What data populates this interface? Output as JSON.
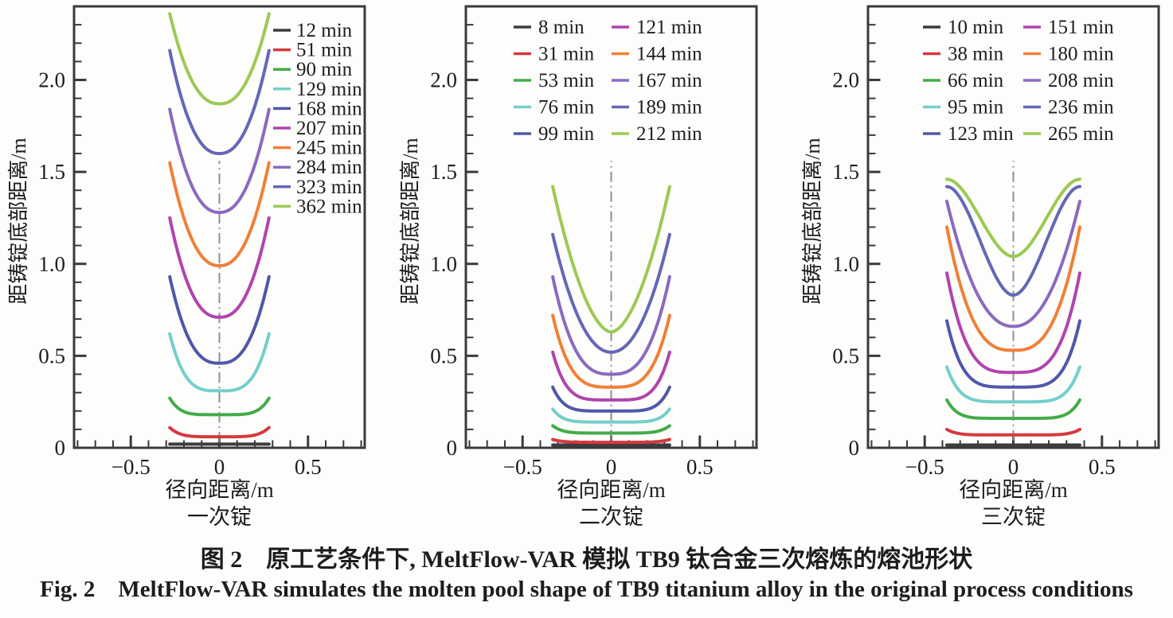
{
  "figure": {
    "caption_zh": "图 2　原工艺条件下, MeltFlow-VAR 模拟 TB9 钛合金三次熔炼的熔池形状",
    "caption_en": "Fig. 2　MeltFlow-VAR simulates the molten pool shape of TB9 titanium alloy in the original process conditions"
  },
  "chart_data": [
    {
      "type": "line",
      "subtitle": "一次锭",
      "xlabel": "径向距离/m",
      "ylabel": "距铸锭底部距离/m",
      "xlim": [
        -0.82,
        0.82
      ],
      "ylim": [
        0,
        2.4
      ],
      "grid": false,
      "legend_position": "top-right",
      "legend_columns": 1,
      "minor_tick": 0.1,
      "x_ticks": [
        {
          "v": -0.5,
          "label": "−0.5"
        },
        {
          "v": 0,
          "label": "0"
        },
        {
          "v": 0.5,
          "label": "0.5"
        }
      ],
      "y_ticks": [
        {
          "v": 0,
          "label": "0"
        },
        {
          "v": 0.5,
          "label": "0.5"
        },
        {
          "v": 1.0,
          "label": "1.0"
        },
        {
          "v": 1.5,
          "label": "1.5"
        },
        {
          "v": 2.0,
          "label": "2.0"
        }
      ],
      "centerline": {
        "x": 0,
        "y_from": 0.03,
        "y_to": 1.56
      },
      "series": [
        {
          "name": "12 min",
          "color": "#3d3d3d",
          "half_width_m": 0.28,
          "pool_bottom_m": 0.02,
          "pool_edge_m": 0.02,
          "shape": "pow",
          "shape_exponent": 2
        },
        {
          "name": "51 min",
          "color": "#d43a3f",
          "half_width_m": 0.28,
          "pool_bottom_m": 0.06,
          "pool_edge_m": 0.11,
          "shape": "pow",
          "shape_exponent": 5
        },
        {
          "name": "90 min",
          "color": "#44ab4a",
          "half_width_m": 0.28,
          "pool_bottom_m": 0.18,
          "pool_edge_m": 0.27,
          "shape": "pow",
          "shape_exponent": 5
        },
        {
          "name": "129 min",
          "color": "#74cfcb",
          "half_width_m": 0.28,
          "pool_bottom_m": 0.31,
          "pool_edge_m": 0.62,
          "shape": "pow",
          "shape_exponent": 3.5
        },
        {
          "name": "168 min",
          "color": "#4f58a8",
          "half_width_m": 0.28,
          "pool_bottom_m": 0.46,
          "pool_edge_m": 0.93,
          "shape": "pow",
          "shape_exponent": 2.6
        },
        {
          "name": "207 min",
          "color": "#b044ae",
          "half_width_m": 0.28,
          "pool_bottom_m": 0.71,
          "pool_edge_m": 1.25,
          "shape": "pow",
          "shape_exponent": 2.4
        },
        {
          "name": "245 min",
          "color": "#f08038",
          "half_width_m": 0.28,
          "pool_bottom_m": 0.99,
          "pool_edge_m": 1.55,
          "shape": "pow",
          "shape_exponent": 2.3
        },
        {
          "name": "284 min",
          "color": "#8a6ac0",
          "half_width_m": 0.28,
          "pool_bottom_m": 1.28,
          "pool_edge_m": 1.84,
          "shape": "pow",
          "shape_exponent": 2.3
        },
        {
          "name": "323 min",
          "color": "#6567b6",
          "half_width_m": 0.28,
          "pool_bottom_m": 1.6,
          "pool_edge_m": 2.16,
          "shape": "pow",
          "shape_exponent": 2.3
        },
        {
          "name": "362 min",
          "color": "#9cc954",
          "half_width_m": 0.28,
          "pool_bottom_m": 1.87,
          "pool_edge_m": 2.36,
          "shape": "pow",
          "shape_exponent": 2.3
        }
      ]
    },
    {
      "type": "line",
      "subtitle": "二次锭",
      "xlabel": "径向距离/m",
      "ylabel": "距铸锭底部距离/m",
      "xlim": [
        -0.82,
        0.82
      ],
      "ylim": [
        0,
        2.4
      ],
      "grid": false,
      "legend_position": "top-center",
      "legend_columns": 2,
      "minor_tick": 0.1,
      "x_ticks": [
        {
          "v": -0.5,
          "label": "−0.5"
        },
        {
          "v": 0,
          "label": "0"
        },
        {
          "v": 0.5,
          "label": "0.5"
        }
      ],
      "y_ticks": [
        {
          "v": 0,
          "label": "0"
        },
        {
          "v": 0.5,
          "label": "0.5"
        },
        {
          "v": 1.0,
          "label": "1.0"
        },
        {
          "v": 1.5,
          "label": "1.5"
        },
        {
          "v": 2.0,
          "label": "2.0"
        }
      ],
      "centerline": {
        "x": 0,
        "y_from": 0.04,
        "y_to": 1.56
      },
      "series": [
        {
          "name": "8 min",
          "color": "#3d3d3d",
          "half_width_m": 0.33,
          "pool_bottom_m": 0.015,
          "pool_edge_m": 0.015,
          "shape": "pow",
          "shape_exponent": 2
        },
        {
          "name": "31 min",
          "color": "#d43a3f",
          "half_width_m": 0.33,
          "pool_bottom_m": 0.03,
          "pool_edge_m": 0.045,
          "shape": "pow",
          "shape_exponent": 6
        },
        {
          "name": "53 min",
          "color": "#44ab4a",
          "half_width_m": 0.33,
          "pool_bottom_m": 0.08,
          "pool_edge_m": 0.12,
          "shape": "pow",
          "shape_exponent": 6
        },
        {
          "name": "76 min",
          "color": "#74cfcb",
          "half_width_m": 0.33,
          "pool_bottom_m": 0.14,
          "pool_edge_m": 0.21,
          "shape": "pow",
          "shape_exponent": 6
        },
        {
          "name": "99 min",
          "color": "#4f58a8",
          "half_width_m": 0.33,
          "pool_bottom_m": 0.2,
          "pool_edge_m": 0.33,
          "shape": "pow",
          "shape_exponent": 5.5
        },
        {
          "name": "121 min",
          "color": "#b044ae",
          "half_width_m": 0.33,
          "pool_bottom_m": 0.26,
          "pool_edge_m": 0.52,
          "shape": "pow",
          "shape_exponent": 4.5
        },
        {
          "name": "144 min",
          "color": "#f08038",
          "half_width_m": 0.33,
          "pool_bottom_m": 0.33,
          "pool_edge_m": 0.72,
          "shape": "pow",
          "shape_exponent": 3.5
        },
        {
          "name": "167 min",
          "color": "#8a6ac0",
          "half_width_m": 0.33,
          "pool_bottom_m": 0.4,
          "pool_edge_m": 0.93,
          "shape": "pow",
          "shape_exponent": 2.8
        },
        {
          "name": "189 min",
          "color": "#6567b6",
          "half_width_m": 0.33,
          "pool_bottom_m": 0.52,
          "pool_edge_m": 1.16,
          "shape": "pow",
          "shape_exponent": 2.1
        },
        {
          "name": "212 min",
          "color": "#9cc954",
          "half_width_m": 0.33,
          "pool_bottom_m": 0.63,
          "pool_edge_m": 1.42,
          "shape": "pow",
          "shape_exponent": 1.8
        }
      ]
    },
    {
      "type": "line",
      "subtitle": "三次锭",
      "xlabel": "径向距离/m",
      "ylabel": "距铸锭底部距离/m",
      "xlim": [
        -0.82,
        0.82
      ],
      "ylim": [
        0,
        2.4
      ],
      "grid": false,
      "legend_position": "top-center",
      "legend_columns": 2,
      "minor_tick": 0.1,
      "x_ticks": [
        {
          "v": -0.5,
          "label": "−0.5"
        },
        {
          "v": 0,
          "label": "0"
        },
        {
          "v": 0.5,
          "label": "0.5"
        }
      ],
      "y_ticks": [
        {
          "v": 0,
          "label": "0"
        },
        {
          "v": 0.5,
          "label": "0.5"
        },
        {
          "v": 1.0,
          "label": "1.0"
        },
        {
          "v": 1.5,
          "label": "1.5"
        },
        {
          "v": 2.0,
          "label": "2.0"
        }
      ],
      "centerline": {
        "x": 0,
        "y_from": 0.04,
        "y_to": 1.56
      },
      "series": [
        {
          "name": "10 min",
          "color": "#3d3d3d",
          "half_width_m": 0.375,
          "pool_bottom_m": 0.015,
          "pool_edge_m": 0.015,
          "shape": "pow",
          "shape_exponent": 2
        },
        {
          "name": "38 min",
          "color": "#d43a3f",
          "half_width_m": 0.375,
          "pool_bottom_m": 0.07,
          "pool_edge_m": 0.1,
          "shape": "pow",
          "shape_exponent": 7
        },
        {
          "name": "66 min",
          "color": "#44ab4a",
          "half_width_m": 0.375,
          "pool_bottom_m": 0.16,
          "pool_edge_m": 0.26,
          "shape": "pow",
          "shape_exponent": 6.5
        },
        {
          "name": "95 min",
          "color": "#74cfcb",
          "half_width_m": 0.375,
          "pool_bottom_m": 0.25,
          "pool_edge_m": 0.44,
          "shape": "pow",
          "shape_exponent": 5.5
        },
        {
          "name": "123 min",
          "color": "#4f58a8",
          "half_width_m": 0.375,
          "pool_bottom_m": 0.33,
          "pool_edge_m": 0.69,
          "shape": "pow",
          "shape_exponent": 4.5
        },
        {
          "name": "151 min",
          "color": "#b044ae",
          "half_width_m": 0.375,
          "pool_bottom_m": 0.41,
          "pool_edge_m": 0.95,
          "shape": "pow",
          "shape_exponent": 3.5
        },
        {
          "name": "180 min",
          "color": "#f08038",
          "half_width_m": 0.375,
          "pool_bottom_m": 0.53,
          "pool_edge_m": 1.2,
          "shape": "pow",
          "shape_exponent": 2.8
        },
        {
          "name": "208 min",
          "color": "#8a6ac0",
          "half_width_m": 0.375,
          "pool_bottom_m": 0.66,
          "pool_edge_m": 1.34,
          "shape": "pow",
          "shape_exponent": 2.2
        },
        {
          "name": "236 min",
          "color": "#6567b6",
          "half_width_m": 0.375,
          "pool_bottom_m": 0.83,
          "pool_edge_m": 1.42,
          "shape": "smooth",
          "shape_exponent": 1
        },
        {
          "name": "265 min",
          "color": "#9cc954",
          "half_width_m": 0.375,
          "pool_bottom_m": 1.04,
          "pool_edge_m": 1.46,
          "shape": "smooth",
          "shape_exponent": 1
        }
      ]
    }
  ]
}
